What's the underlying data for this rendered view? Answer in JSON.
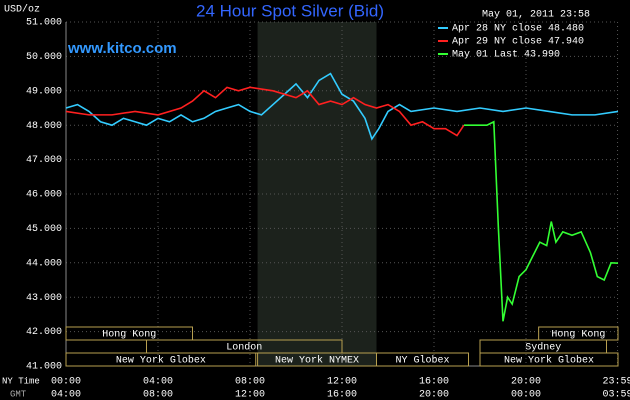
{
  "chart_data": {
    "type": "line",
    "title": "24 Hour Spot Silver (Bid)",
    "y_unit": "USD/oz",
    "timestamp": "May 01, 2011 23:58",
    "watermark": "www.kitco.com",
    "xlim": [
      0,
      24
    ],
    "ylim": [
      41,
      51
    ],
    "grid": true,
    "legend": "top-right",
    "background": "#000000",
    "highlight_range": [
      8.33,
      13.5
    ],
    "yticks": [
      {
        "value": 41,
        "label": "41.000"
      },
      {
        "value": 42,
        "label": "42.000"
      },
      {
        "value": 43,
        "label": "43.000"
      },
      {
        "value": 44,
        "label": "44.000"
      },
      {
        "value": 45,
        "label": "45.000"
      },
      {
        "value": 46,
        "label": "46.000"
      },
      {
        "value": 47,
        "label": "47.000"
      },
      {
        "value": 48,
        "label": "48.000"
      },
      {
        "value": 49,
        "label": "49.000"
      },
      {
        "value": 50,
        "label": "50.000"
      },
      {
        "value": 51,
        "label": "51.000"
      }
    ],
    "xtick_row_label": "NY Time",
    "xticks": [
      {
        "value": 0,
        "label": "00:00"
      },
      {
        "value": 4,
        "label": "04:00"
      },
      {
        "value": 8,
        "label": "08:00"
      },
      {
        "value": 12,
        "label": "12:00"
      },
      {
        "value": 16,
        "label": "16:00"
      },
      {
        "value": 20,
        "label": "20:00"
      },
      {
        "value": 23.98,
        "label": "23:59"
      }
    ],
    "gmt_row_label": "GMT",
    "gmt_ticks": [
      {
        "value": 0,
        "label": "04:00"
      },
      {
        "value": 4,
        "label": "08:00"
      },
      {
        "value": 8,
        "label": "12:00"
      },
      {
        "value": 12,
        "label": "16:00"
      },
      {
        "value": 16,
        "label": "20:00"
      },
      {
        "value": 20,
        "label": "00:00"
      },
      {
        "value": 23.98,
        "label": "03:59"
      }
    ],
    "sessions": [
      {
        "label": "Hong Kong",
        "row": 0,
        "start": 0,
        "end": 5.5
      },
      {
        "label": "Hong Kong",
        "row": 0,
        "start": 20.55,
        "end": 24
      },
      {
        "label": "London",
        "row": 1,
        "start": 3.5,
        "end": 12
      },
      {
        "label": "Sydney",
        "row": 1,
        "start": 18,
        "end": 23.5
      },
      {
        "label": "New York Globex",
        "row": 2,
        "start": 0,
        "end": 8.25
      },
      {
        "label": "New York NYMEX",
        "row": 2,
        "start": 8.33,
        "end": 13.5
      },
      {
        "label": "NY Globex",
        "row": 2,
        "start": 13.5,
        "end": 17.5
      },
      {
        "label": "New York Globex",
        "row": 2,
        "start": 18,
        "end": 24
      }
    ],
    "series": [
      {
        "name": "Apr 28 NY close 48.480",
        "color": "#33ccff",
        "x": [
          0,
          0.5,
          1,
          1.5,
          2,
          2.5,
          3,
          3.5,
          4,
          4.5,
          5,
          5.5,
          6,
          6.5,
          7,
          7.5,
          8,
          8.5,
          9,
          9.5,
          10,
          10.5,
          11,
          11.5,
          12,
          12.5,
          13,
          13.3,
          13.6,
          14,
          14.5,
          15,
          16,
          17,
          18,
          19,
          20,
          21,
          22,
          23,
          24
        ],
        "values": [
          48.5,
          48.6,
          48.4,
          48.1,
          48.0,
          48.2,
          48.1,
          48.0,
          48.2,
          48.1,
          48.3,
          48.1,
          48.2,
          48.4,
          48.5,
          48.6,
          48.4,
          48.3,
          48.6,
          48.9,
          49.2,
          48.8,
          49.3,
          49.5,
          48.9,
          48.7,
          48.2,
          47.6,
          47.9,
          48.4,
          48.6,
          48.4,
          48.5,
          48.4,
          48.5,
          48.4,
          48.5,
          48.4,
          48.3,
          48.3,
          48.4
        ]
      },
      {
        "name": "Apr 29 NY close 47.940",
        "color": "#ff2020",
        "x": [
          0,
          1,
          2,
          3,
          4,
          5,
          5.5,
          6,
          6.5,
          7,
          7.5,
          8,
          9,
          10,
          10.5,
          11,
          11.5,
          12,
          12.5,
          13,
          13.5,
          14,
          14.5,
          15,
          15.5,
          16,
          16.5,
          17,
          17.3
        ],
        "values": [
          48.4,
          48.3,
          48.3,
          48.4,
          48.3,
          48.5,
          48.7,
          49.0,
          48.8,
          49.1,
          49.0,
          49.1,
          49.0,
          48.8,
          49.0,
          48.6,
          48.7,
          48.6,
          48.8,
          48.6,
          48.5,
          48.6,
          48.4,
          48.0,
          48.1,
          47.9,
          47.9,
          47.7,
          48.0
        ]
      },
      {
        "name": "May 01 Last 43.990",
        "color": "#33ff33",
        "x": [
          17.3,
          18.3,
          18.6,
          18.8,
          19,
          19.2,
          19.4,
          19.7,
          20,
          20.3,
          20.6,
          20.9,
          21.1,
          21.3,
          21.6,
          22,
          22.4,
          22.8,
          23.1,
          23.4,
          23.7,
          24
        ],
        "values": [
          48.0,
          48.0,
          48.1,
          45.0,
          42.3,
          43.0,
          42.8,
          43.6,
          43.8,
          44.2,
          44.6,
          44.5,
          45.2,
          44.6,
          44.9,
          44.8,
          44.9,
          44.3,
          43.6,
          43.5,
          44.0,
          43.99
        ]
      }
    ]
  }
}
